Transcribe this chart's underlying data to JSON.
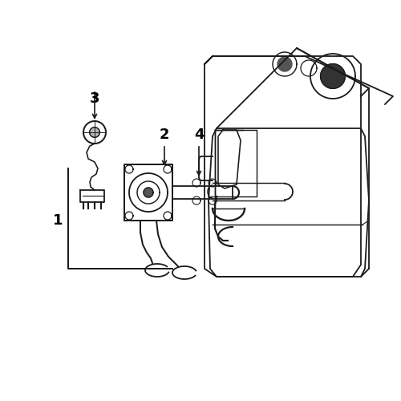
{
  "bg_color": "#ffffff",
  "line_color": "#1a1a1a",
  "label_color": "#000000",
  "fig_size": [
    5.0,
    5.0
  ],
  "dpi": 100
}
